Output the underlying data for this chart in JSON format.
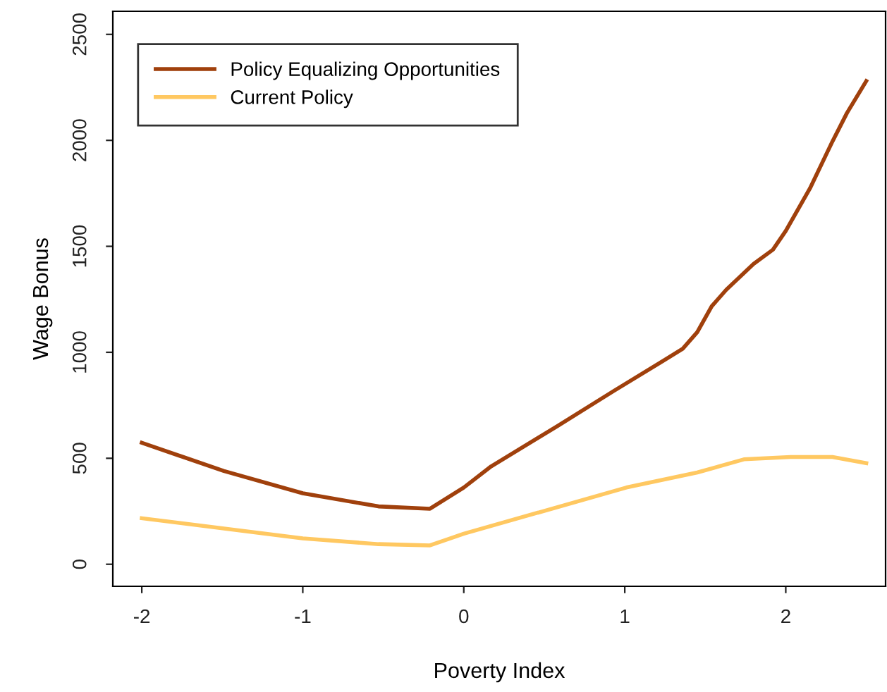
{
  "chart_data": {
    "type": "line",
    "xlabel": "Poverty Index",
    "ylabel": "Wage Bonus",
    "xlim": [
      -2.18,
      2.62
    ],
    "ylim": [
      -104,
      2609
    ],
    "xticks": [
      -2,
      -1,
      0,
      1,
      2
    ],
    "yticks": [
      0,
      500,
      1000,
      1500,
      2000,
      2500
    ],
    "grid": false,
    "legend": "top left",
    "marker": "none",
    "line_style": "solid",
    "series": [
      {
        "name": "Policy Equalizing Opportunities",
        "color": "#a0400c",
        "x": [
          -2,
          -1.49,
          -1.0,
          -0.53,
          -0.21,
          0,
          0.17,
          0.58,
          0.93,
          1.22,
          1.36,
          1.45,
          1.54,
          1.63,
          1.8,
          1.92,
          2.0,
          2.15,
          2.29,
          2.38,
          2.5
        ],
        "values": [
          573,
          440,
          335,
          273,
          262,
          362,
          462,
          651,
          817,
          951,
          1017,
          1095,
          1217,
          1295,
          1417,
          1484,
          1573,
          1773,
          1995,
          2129,
          2280
        ]
      },
      {
        "name": "Current Policy",
        "color": "#ffc861",
        "x": [
          -2,
          -1,
          -0.53,
          -0.21,
          0,
          1.01,
          1.45,
          1.74,
          2.03,
          2.29,
          2.5
        ],
        "values": [
          217,
          122,
          95,
          89,
          144,
          362,
          433,
          495,
          506,
          506,
          477
        ]
      }
    ]
  }
}
